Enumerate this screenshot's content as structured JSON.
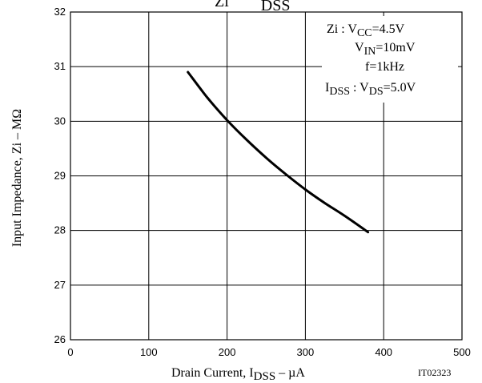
{
  "chart_data": {
    "type": "line",
    "title_main": "Zi",
    "title_sub": "DSS",
    "xlabel_main": "Drain Current, I",
    "xlabel_sub": "DSS",
    "xlabel_tail": "  –  µA",
    "ylabel": "Input Impedance, Zi  –  MΩ",
    "figure_id": "IT02323",
    "xlim": [
      0,
      500
    ],
    "ylim": [
      26,
      32
    ],
    "x_ticks": [
      "0",
      "100",
      "200",
      "300",
      "400",
      "500"
    ],
    "y_ticks": [
      "26",
      "27",
      "28",
      "29",
      "30",
      "31",
      "32"
    ],
    "grid": true,
    "legend_position": "top-right",
    "conditions": [
      {
        "main": "Zi : V",
        "sub": "CC",
        "tail": "=4.5V"
      },
      {
        "main": "V",
        "sub": "IN",
        "tail": "=10mV"
      },
      {
        "main": "f=1kHz",
        "sub": "",
        "tail": ""
      },
      {
        "main": "I",
        "sub": "DSS",
        "tail": " : V",
        "sub2": "DS",
        "tail2": "=5.0V"
      }
    ],
    "series": [
      {
        "x": [
          150,
          175,
          200,
          225,
          250,
          275,
          300,
          325,
          350,
          380
        ],
        "y": [
          30.9,
          30.43,
          30.02,
          29.66,
          29.33,
          29.03,
          28.75,
          28.5,
          28.27,
          27.97
        ]
      }
    ]
  }
}
